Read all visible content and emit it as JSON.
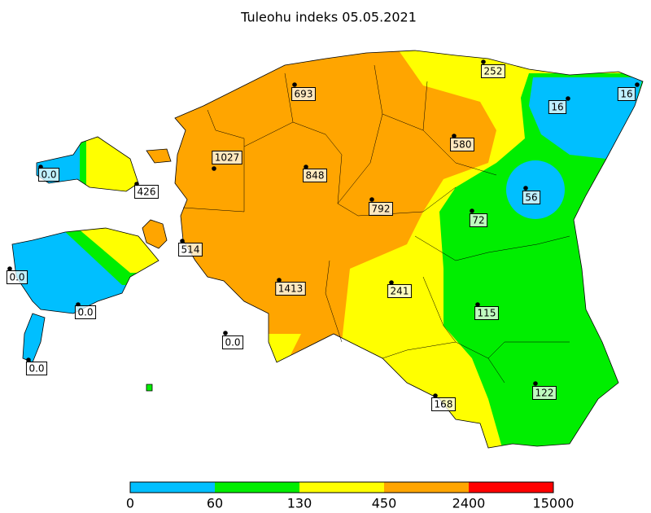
{
  "title": "Tuleohu indeks 05.05.2021",
  "stations": [
    {
      "label": "0.0"
    },
    {
      "label": "426"
    },
    {
      "label": "1027"
    },
    {
      "label": "848"
    },
    {
      "label": "693"
    },
    {
      "label": "252"
    },
    {
      "label": "580"
    },
    {
      "label": "16"
    },
    {
      "label": "16"
    },
    {
      "label": "56"
    },
    {
      "label": "792"
    },
    {
      "label": "72"
    },
    {
      "label": "514"
    },
    {
      "label": "0.0"
    },
    {
      "label": "1413"
    },
    {
      "label": "241"
    },
    {
      "label": "0.0"
    },
    {
      "label": "115"
    },
    {
      "label": "0.0"
    },
    {
      "label": "0.0"
    },
    {
      "label": "168"
    },
    {
      "label": "122"
    }
  ],
  "colorbar": {
    "colors": [
      "#00bfff",
      "#00ee00",
      "#ffff00",
      "#ffa500",
      "#ff0000"
    ],
    "ticks": [
      "0",
      "60",
      "130",
      "450",
      "2400",
      "15000"
    ]
  }
}
